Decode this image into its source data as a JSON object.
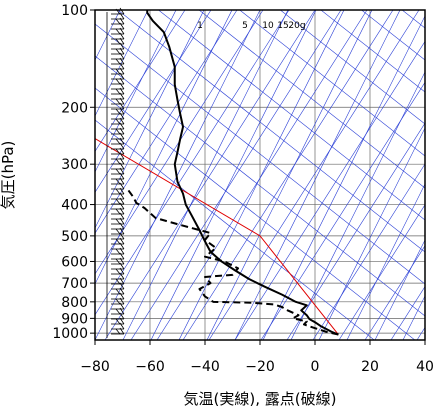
{
  "chart_data": {
    "type": "line",
    "title": "",
    "xlabel": "気温(実線), 露点(破線)",
    "ylabel": "気圧(hPa)",
    "xlim": [
      -80,
      40
    ],
    "ylim": [
      1050,
      100
    ],
    "y_scale": "log",
    "x_ticks": [
      -80,
      -60,
      -40,
      -20,
      0,
      20,
      40
    ],
    "x_tick_labels": [
      "−80",
      "−60",
      "−40",
      "−20",
      "0",
      "20",
      "40"
    ],
    "y_ticks": [
      100,
      200,
      300,
      400,
      500,
      600,
      700,
      800,
      900,
      1000
    ],
    "y_tick_labels": [
      "100",
      "200",
      "300",
      "400",
      "500",
      "600",
      "700",
      "800",
      "900",
      "1000"
    ],
    "mixing_ratio_labels": [
      "1",
      "5",
      "10",
      "15",
      "20g"
    ],
    "colors": {
      "temperature": "#000000",
      "dewpoint": "#000000",
      "guide": "#e00000",
      "background_lines": "#2a3fd6",
      "grid": "#666666"
    },
    "guide_line": {
      "name": "",
      "points": [
        [
          8.5,
          1010
        ],
        [
          -20,
          500
        ],
        [
          -80,
          250
        ]
      ]
    },
    "series": [
      {
        "style": "solid",
        "points": [
          [
            8.5,
            1010
          ],
          [
            6,
            990
          ],
          [
            4,
            970
          ],
          [
            2,
            950
          ],
          [
            0,
            925
          ],
          [
            -2,
            905
          ],
          [
            -3,
            880
          ],
          [
            -5,
            850
          ],
          [
            -3,
            820
          ],
          [
            -7,
            800
          ],
          [
            -12,
            760
          ],
          [
            -18,
            720
          ],
          [
            -24,
            680
          ],
          [
            -29,
            640
          ],
          [
            -34,
            600
          ],
          [
            -38,
            560
          ],
          [
            -40,
            520
          ],
          [
            -42,
            480
          ],
          [
            -45,
            430
          ],
          [
            -47,
            400
          ],
          [
            -48,
            370
          ],
          [
            -50,
            340
          ],
          [
            -51,
            300
          ],
          [
            -50,
            275
          ],
          [
            -49,
            250
          ],
          [
            -48,
            230
          ],
          [
            -49,
            210
          ],
          [
            -50,
            190
          ],
          [
            -51,
            170
          ],
          [
            -51,
            150
          ],
          [
            -53,
            130
          ],
          [
            -55,
            117
          ],
          [
            -59,
            108
          ],
          [
            -61,
            102
          ],
          [
            -61,
            98
          ]
        ]
      },
      {
        "style": "dashed",
        "points": [
          [
            8.5,
            1010
          ],
          [
            4,
            990
          ],
          [
            0,
            965
          ],
          [
            -4,
            940
          ],
          [
            -3,
            920
          ],
          [
            -8,
            900
          ],
          [
            -6,
            880
          ],
          [
            -10,
            850
          ],
          [
            -12,
            830
          ],
          [
            -15,
            815
          ],
          [
            -23,
            805
          ],
          [
            -37,
            800
          ],
          [
            -40,
            770
          ],
          [
            -42,
            730
          ],
          [
            -38,
            700
          ],
          [
            -40,
            670
          ],
          [
            -30,
            660
          ],
          [
            -28,
            630
          ],
          [
            -33,
            600
          ],
          [
            -40,
            580
          ],
          [
            -36,
            545
          ],
          [
            -40,
            515
          ],
          [
            -38,
            490
          ],
          [
            -50,
            460
          ],
          [
            -58,
            440
          ],
          [
            -62,
            410
          ],
          [
            -65,
            395
          ],
          [
            -66,
            380
          ],
          [
            -68,
            360
          ]
        ]
      }
    ],
    "grid": true
  }
}
